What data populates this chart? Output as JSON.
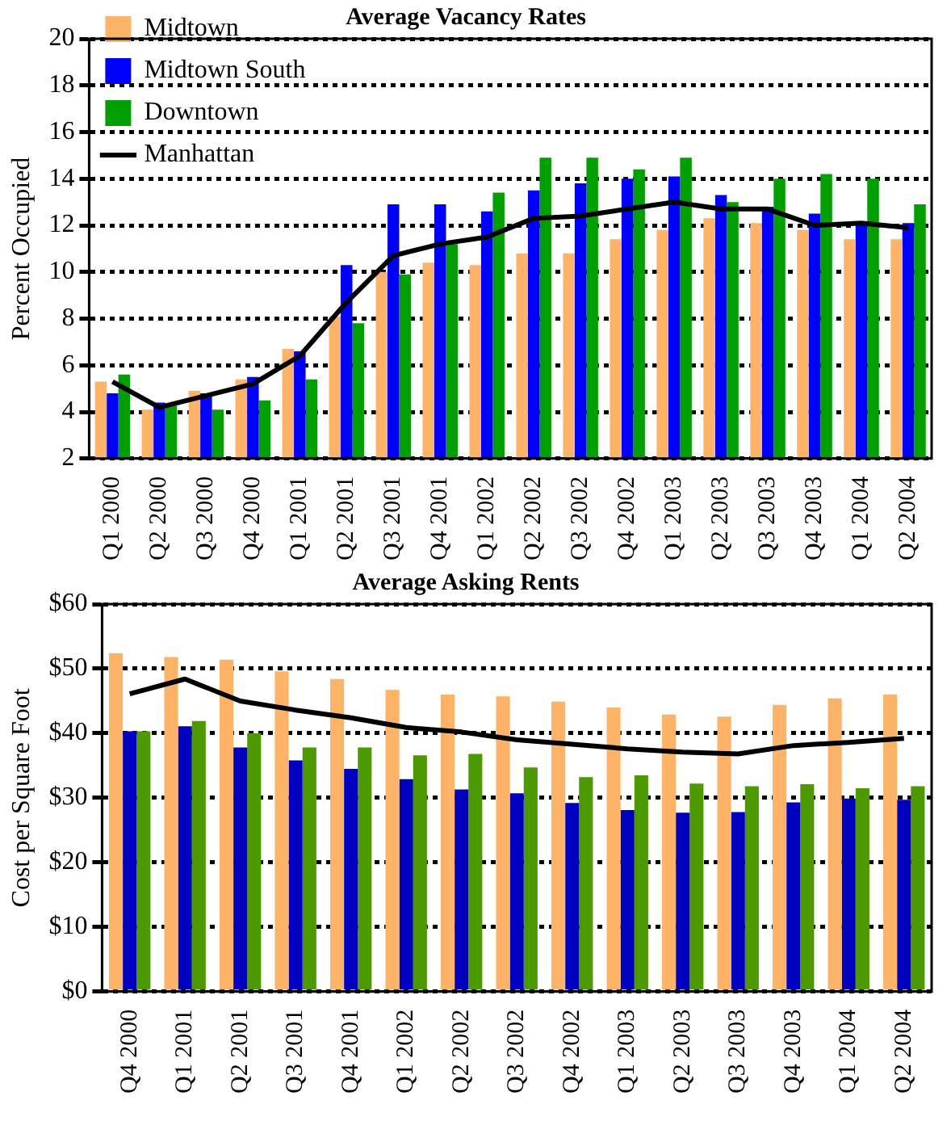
{
  "chart_data": [
    {
      "type": "bar",
      "title": "Average Vacancy Rates",
      "ylabel": "Percent Occupied",
      "categories": [
        "Q1 2000",
        "Q2 2000",
        "Q3 2000",
        "Q4 2000",
        "Q1 2001",
        "Q2 2001",
        "Q3 2001",
        "Q4 2001",
        "Q1 2002",
        "Q2 2002",
        "Q3 2002",
        "Q4 2002",
        "Q1 2003",
        "Q2 2003",
        "Q3 2003",
        "Q4 2003",
        "Q1 2004",
        "Q2 2004"
      ],
      "series": [
        {
          "name": "Midtown",
          "color": "#ffb366",
          "values": [
            5.3,
            4.1,
            4.9,
            5.4,
            6.7,
            8.1,
            10.0,
            10.4,
            10.3,
            10.8,
            10.8,
            11.4,
            11.8,
            12.3,
            12.1,
            11.8,
            11.4,
            11.4
          ]
        },
        {
          "name": "Midtown South",
          "color": "#0000ff",
          "values": [
            4.8,
            4.4,
            4.8,
            5.5,
            6.6,
            10.3,
            12.9,
            12.9,
            12.6,
            13.5,
            13.8,
            14.0,
            14.1,
            13.3,
            12.8,
            12.5,
            12.0,
            12.1
          ]
        },
        {
          "name": "Downtown",
          "color": "#00a000",
          "values": [
            5.6,
            4.3,
            4.1,
            4.5,
            5.4,
            7.8,
            9.9,
            11.2,
            13.4,
            14.9,
            14.9,
            14.4,
            14.9,
            13.0,
            14.0,
            14.2,
            14.0,
            12.9
          ]
        },
        {
          "name": "Manhattan",
          "type": "line",
          "color": "#000000",
          "values": [
            5.3,
            4.2,
            4.7,
            5.2,
            6.4,
            8.7,
            10.7,
            11.2,
            11.5,
            12.3,
            12.4,
            12.7,
            13.0,
            12.7,
            12.7,
            12.0,
            12.1,
            11.9
          ]
        }
      ],
      "ylim": [
        2,
        20
      ],
      "yticks": [
        2,
        4,
        6,
        8,
        10,
        12,
        14,
        16,
        18,
        20
      ],
      "grid": "y",
      "legend": "top left",
      "line_style": "solid",
      "marker": "none"
    },
    {
      "type": "bar",
      "title": "Average Asking Rents",
      "ylabel": "Cost per Square Foot",
      "categories": [
        "Q4 2000",
        "Q1 2001",
        "Q2 2001",
        "Q3 2001",
        "Q4 2001",
        "Q1 2002",
        "Q2 2002",
        "Q3 2002",
        "Q4 2002",
        "Q1 2003",
        "Q2 2003",
        "Q3 2003",
        "Q4 2003",
        "Q1 2004",
        "Q2 2004"
      ],
      "series": [
        {
          "color": "#ffb366",
          "values": [
            52.4,
            51.8,
            51.4,
            49.6,
            48.4,
            46.7,
            46.0,
            45.7,
            44.9,
            44.0,
            42.9,
            42.6,
            44.4,
            45.4,
            46.0
          ]
        },
        {
          "color": "#0000c0",
          "values": [
            40.3,
            41.1,
            37.8,
            35.8,
            34.5,
            32.9,
            31.3,
            30.7,
            29.2,
            28.1,
            27.7,
            27.8,
            29.3,
            29.9,
            29.7
          ]
        },
        {
          "color": "#4c9a00",
          "values": [
            40.3,
            41.9,
            40.0,
            37.8,
            37.8,
            36.6,
            36.8,
            34.7,
            33.2,
            33.5,
            32.2,
            31.8,
            32.1,
            31.5,
            31.8
          ]
        },
        {
          "type": "line",
          "color": "#000000",
          "values": [
            46.1,
            48.4,
            45.0,
            43.6,
            42.4,
            40.9,
            40.2,
            39.0,
            38.3,
            37.6,
            37.1,
            36.8,
            38.1,
            38.6,
            39.2
          ]
        }
      ],
      "ylim": [
        0,
        60
      ],
      "yticks": [
        {
          "value": 0,
          "label": "$0"
        },
        {
          "value": 10,
          "label": "$10"
        },
        {
          "value": 20,
          "label": "$20"
        },
        {
          "value": 30,
          "label": "$30"
        },
        {
          "value": 40,
          "label": "$40"
        },
        {
          "value": 50,
          "label": "$50"
        },
        {
          "value": 60,
          "label": "$60"
        }
      ],
      "grid": "y",
      "legend": false,
      "line_style": "solid",
      "marker": "none"
    }
  ]
}
